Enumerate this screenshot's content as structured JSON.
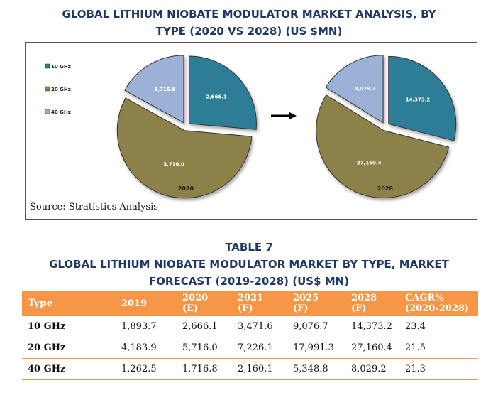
{
  "title_top": [
    "GLOBAL LITHIUM NIOBATE MODULATOR MARKET ANALYSIS, BY",
    "TYPE (2020 VS 2028) (US $MN)"
  ],
  "chart_data": [
    {
      "type": "pie",
      "categories": [
        "10 GHz",
        "20 GHz",
        "40 GHz"
      ],
      "values": [
        2666.1,
        5716.0,
        1716.8
      ],
      "labels": [
        "2,666.1",
        "5,716.0",
        "1,716.8"
      ],
      "xlabel": "2020",
      "colors": [
        "#2e7d96",
        "#8b8148",
        "#9bb2d6"
      ]
    },
    {
      "type": "pie",
      "categories": [
        "10 GHz",
        "20 GHz",
        "40 GHz"
      ],
      "values": [
        14373.2,
        27160.4,
        8029.2
      ],
      "labels": [
        "14,373.2",
        "27,160.4",
        "8,029.2"
      ],
      "xlabel": "2028",
      "colors": [
        "#2e7d96",
        "#8b8148",
        "#9bb2d6"
      ]
    }
  ],
  "legend": [
    {
      "label": "10 GHz",
      "color": "#2e7d96"
    },
    {
      "label": "20 GHz",
      "color": "#8b8148"
    },
    {
      "label": "40 GHz",
      "color": "#9bb2d6"
    }
  ],
  "source": "Source: Stratistics Analysis",
  "table_title": [
    "TABLE 7",
    "GLOBAL LITHIUM NIOBATE MODULATOR MARKET BY TYPE, MARKET",
    "FORECAST (2019-2028) (US$ MN)"
  ],
  "table": {
    "headers": [
      [
        "Type"
      ],
      [
        "2019"
      ],
      [
        "2020",
        "(E)"
      ],
      [
        "2021",
        "(F)"
      ],
      [
        "2025",
        "(F)"
      ],
      [
        "2028",
        "(F)"
      ],
      [
        "CAGR%",
        "(2020-2028)"
      ]
    ],
    "rows": [
      [
        "10 GHz",
        "1,893.7",
        "2,666.1",
        "3,471.6",
        "9,076.7",
        "14,373.2",
        "23.4"
      ],
      [
        "20 GHz",
        "4,183.9",
        "5,716.0",
        "7,226.1",
        "17,991.3",
        "27,160.4",
        "21.5"
      ],
      [
        "40 GHz",
        "1,262.5",
        "1,716.8",
        "2,160.1",
        "5,348.8",
        "8,029.2",
        "21.3"
      ]
    ]
  }
}
